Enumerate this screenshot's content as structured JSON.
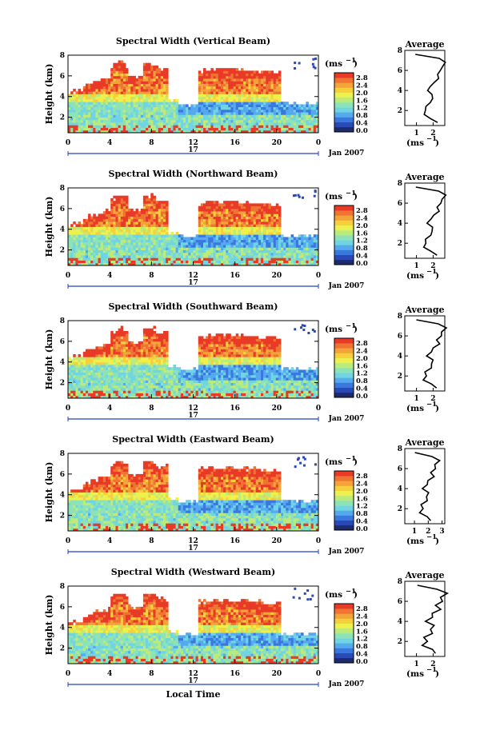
{
  "chart_data": {
    "type": "heatmap",
    "panels": [
      {
        "title": "Spectral Width (Vertical Beam)",
        "profile_x_ticks": [
          "1",
          "2"
        ],
        "profile_xlim": [
          0.3,
          2.7
        ],
        "cloud_bottom_shift": 0.0
      },
      {
        "title": "Spectral Width (Northward Beam)",
        "profile_x_ticks": [
          "1",
          "2"
        ],
        "profile_xlim": [
          0.3,
          2.7
        ],
        "cloud_bottom_shift": 0.0
      },
      {
        "title": "Spectral Width (Southward Beam)",
        "profile_x_ticks": [
          "1",
          "2"
        ],
        "profile_xlim": [
          0.3,
          2.7
        ],
        "cloud_bottom_shift": 0.3
      },
      {
        "title": "Spectral Width (Eastward Beam)",
        "profile_x_ticks": [
          "1",
          "2",
          "3"
        ],
        "profile_xlim": [
          0.3,
          3.2
        ],
        "cloud_bottom_shift": 0.0
      },
      {
        "title": "Spectral Width (Westward Beam)",
        "profile_x_ticks": [
          "1",
          "2"
        ],
        "profile_xlim": [
          0.3,
          2.7
        ],
        "cloud_bottom_shift": 0.0
      }
    ],
    "ylabel": "Height (km)",
    "y_ticks": [
      "2",
      "4",
      "6",
      "8"
    ],
    "ylim": [
      0.5,
      8.0
    ],
    "x_ticks": [
      "0",
      "4",
      "8",
      "12",
      "16",
      "20",
      "0"
    ],
    "xlim": [
      0,
      24
    ],
    "date_center": "17",
    "date_right": "Jan 2007",
    "xlabel": "Local Time",
    "colorbar_unit": "(ms",
    "colorbar_unit_sup": "−1",
    "colorbar_unit_close": ")",
    "colorbar_ticks": [
      "2.8",
      "2.4",
      "2.0",
      "1.6",
      "1.2",
      "0.8",
      "0.4",
      "0.0"
    ],
    "colorbar_range": [
      0.0,
      2.8
    ],
    "profile_title": "Average",
    "profile_y_ticks": [
      "2",
      "4",
      "6",
      "8"
    ],
    "profile_ylim": [
      0.5,
      8.0
    ],
    "profile_xlabel": "(ms",
    "profile": {
      "height_km": [
        0.8,
        1.2,
        1.6,
        2.0,
        2.4,
        2.8,
        3.2,
        3.6,
        4.0,
        4.4,
        4.8,
        5.2,
        5.6,
        6.0,
        6.4,
        6.8,
        7.2,
        7.6
      ],
      "width_ms": [
        2.3,
        1.8,
        1.5,
        1.5,
        1.6,
        1.8,
        2.0,
        1.9,
        1.7,
        1.8,
        2.1,
        2.3,
        2.3,
        2.4,
        2.6,
        2.7,
        2.4,
        0.9
      ]
    },
    "colormap": [
      "#1d2a6e",
      "#2a49b5",
      "#3a78e0",
      "#55a9ee",
      "#70d4e2",
      "#8de3b7",
      "#bdeb7a",
      "#eef04d",
      "#f7cf3d",
      "#f4a33a",
      "#ef7432",
      "#e83a26"
    ]
  }
}
